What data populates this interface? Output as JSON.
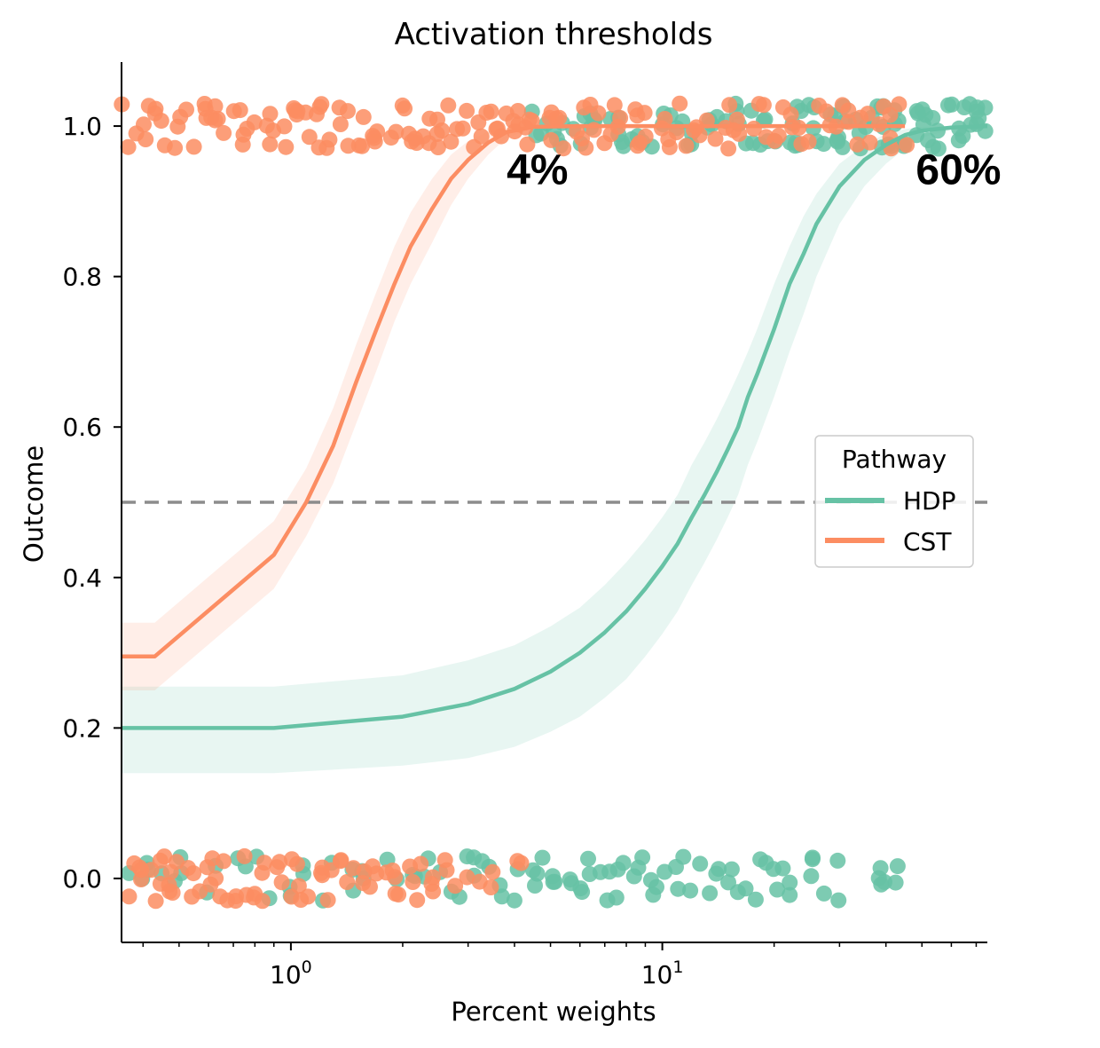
{
  "chart_data": {
    "type": "scatter",
    "title": "Activation thresholds",
    "xlabel": "Percent weights",
    "ylabel": "Outcome",
    "xscale": "log",
    "xlim": [
      0.35,
      75
    ],
    "ylim": [
      -0.085,
      1.085
    ],
    "y_ticks": [
      "0.0",
      "0.2",
      "0.4",
      "0.6",
      "0.8",
      "1.0"
    ],
    "x_ticks": [
      {
        "base": "10",
        "exp": "0",
        "value": 1
      },
      {
        "base": "10",
        "exp": "1",
        "value": 10
      }
    ],
    "grid": false,
    "reference_line": {
      "y": 0.5,
      "style": "dashed",
      "color": "#8c8c8c"
    },
    "legend": {
      "title": "Pathway",
      "placement": "center-right"
    },
    "series": [
      {
        "name": "HDP",
        "color": "#66c2a5",
        "threshold_label": "60%",
        "threshold_label_pos": {
          "x": 60,
          "y": 0.925
        },
        "fit_curve": {
          "x": [
            0.35,
            0.9,
            2.0,
            3.0,
            4.0,
            5.0,
            6.0,
            7.0,
            8.0,
            9.0,
            10.0,
            11.0,
            12.0,
            13.0,
            14.0,
            15.0,
            16.0,
            17.0,
            18.0,
            20.0,
            22.0,
            24.0,
            26.0,
            30.0,
            35.0,
            40.0,
            45.0,
            50.0,
            60.0,
            75.0
          ],
          "y": [
            0.2,
            0.2,
            0.215,
            0.232,
            0.252,
            0.275,
            0.3,
            0.327,
            0.355,
            0.385,
            0.415,
            0.445,
            0.48,
            0.51,
            0.54,
            0.57,
            0.6,
            0.64,
            0.67,
            0.73,
            0.79,
            0.83,
            0.87,
            0.92,
            0.955,
            0.975,
            0.988,
            0.994,
            0.998,
            1.0
          ],
          "ci_lower": [
            0.14,
            0.14,
            0.15,
            0.16,
            0.175,
            0.195,
            0.215,
            0.24,
            0.265,
            0.295,
            0.325,
            0.355,
            0.39,
            0.42,
            0.45,
            0.48,
            0.51,
            0.55,
            0.58,
            0.64,
            0.7,
            0.75,
            0.8,
            0.87,
            0.92,
            0.95,
            0.97,
            0.985,
            0.995,
            0.999
          ],
          "ci_upper": [
            0.255,
            0.255,
            0.27,
            0.29,
            0.31,
            0.335,
            0.36,
            0.39,
            0.42,
            0.45,
            0.48,
            0.51,
            0.55,
            0.58,
            0.61,
            0.64,
            0.67,
            0.7,
            0.73,
            0.79,
            0.84,
            0.88,
            0.91,
            0.95,
            0.975,
            0.99,
            0.996,
            0.999,
            1.0,
            1.0
          ]
        },
        "points_y1_x": [
          4.6,
          5.1,
          5.5,
          6.2,
          6.8,
          7.4,
          8.1,
          9.0,
          10.2,
          11.3,
          12.5,
          13.8,
          15.2,
          16.7,
          18.4,
          19.9,
          21.5,
          23.0,
          24.7,
          26.5,
          28.3,
          30.1,
          32.4,
          34.8,
          37.2,
          39.5,
          42.0,
          44.6,
          47.3,
          50.1,
          53.0,
          56.0,
          59.4,
          63.0,
          67.2,
          71.0,
          74.5
        ],
        "points_y0_x": [
          0.38,
          0.42,
          0.47,
          0.52,
          0.61,
          0.73,
          0.85,
          0.98,
          1.12,
          1.28,
          1.45,
          1.62,
          1.85,
          2.08,
          2.35,
          2.62,
          2.9,
          3.15,
          3.42,
          3.7,
          4.0,
          4.35,
          4.7,
          5.05,
          5.4,
          5.8,
          6.2,
          6.6,
          7.05,
          7.5,
          8.0,
          8.6,
          9.2,
          10.0,
          10.8,
          11.8,
          12.9,
          14.1,
          15.3,
          16.6,
          18.0,
          19.5,
          21.0,
          22.7,
          24.5,
          26.3,
          28.5,
          40.0,
          40.8,
          41.5
        ]
      },
      {
        "name": "CST",
        "color": "#fc8d62",
        "threshold_label": "4%",
        "threshold_label_pos": {
          "x": 4.3,
          "y": 0.925
        },
        "fit_curve": {
          "x": [
            0.35,
            0.43,
            0.9,
            1.1,
            1.3,
            1.5,
            1.7,
            1.9,
            2.1,
            2.4,
            2.7,
            3.0,
            3.4,
            3.8,
            4.5,
            6.0,
            10.0,
            20.0,
            45.0
          ],
          "y": [
            0.295,
            0.295,
            0.43,
            0.5,
            0.575,
            0.66,
            0.73,
            0.79,
            0.84,
            0.89,
            0.93,
            0.955,
            0.978,
            0.992,
            0.999,
            1.0,
            1.0,
            1.0,
            1.0
          ],
          "ci_lower": [
            0.25,
            0.25,
            0.385,
            0.455,
            0.525,
            0.605,
            0.675,
            0.74,
            0.79,
            0.845,
            0.895,
            0.93,
            0.962,
            0.984,
            0.997,
            1.0,
            1.0,
            1.0,
            1.0
          ],
          "ci_upper": [
            0.34,
            0.34,
            0.475,
            0.545,
            0.625,
            0.71,
            0.78,
            0.84,
            0.885,
            0.93,
            0.962,
            0.98,
            0.993,
            0.998,
            1.0,
            1.0,
            1.0,
            1.0,
            1.0
          ]
        },
        "points_y1_x": [
          0.36,
          0.39,
          0.43,
          0.47,
          0.51,
          0.56,
          0.61,
          0.66,
          0.72,
          0.78,
          0.85,
          0.92,
          1.0,
          1.08,
          1.17,
          1.27,
          1.38,
          1.5,
          1.63,
          1.77,
          1.92,
          2.08,
          2.25,
          2.44,
          2.64,
          2.86,
          3.1,
          3.35,
          3.62,
          3.92,
          4.25,
          4.6,
          4.98,
          5.4,
          5.85,
          6.35,
          6.9,
          7.5,
          8.2,
          9.0,
          9.9,
          10.9,
          12.0,
          13.2,
          14.6,
          16.2,
          18.0,
          20.0,
          22.2,
          24.6,
          27.2,
          30.0,
          33.5,
          37.0,
          40.5,
          43.5
        ],
        "points_y0_x": [
          0.36,
          0.38,
          0.4,
          0.42,
          0.44,
          0.46,
          0.48,
          0.5,
          0.53,
          0.56,
          0.59,
          0.62,
          0.66,
          0.7,
          0.74,
          0.78,
          0.83,
          0.88,
          0.93,
          0.98,
          1.04,
          1.1,
          1.17,
          1.24,
          1.31,
          1.39,
          1.47,
          1.56,
          1.65,
          1.75,
          1.86,
          1.97,
          2.09,
          2.22,
          2.36,
          2.5,
          2.7,
          3.1,
          3.6,
          4.2
        ]
      }
    ]
  }
}
